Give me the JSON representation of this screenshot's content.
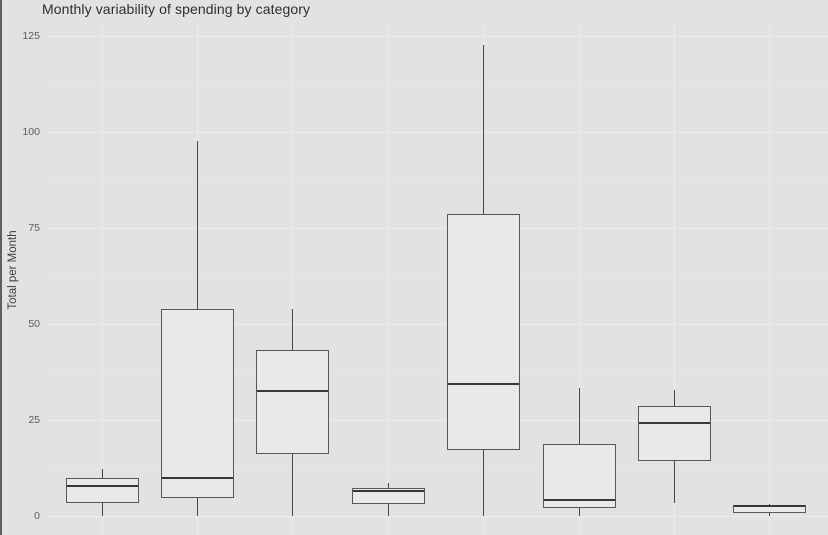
{
  "chart": {
    "title": "Monthly variability of spending by category",
    "ylabel": "Total per Month"
  },
  "chart_data": {
    "type": "boxplot",
    "title": "Monthly variability of spending by category",
    "xlabel": "",
    "ylabel": "Total per Month",
    "yticks": [
      0,
      25,
      50,
      75,
      100,
      125
    ],
    "ylim": [
      -5,
      128
    ],
    "grid": "on",
    "legend": "none",
    "x_axis": {
      "n_categories": 8,
      "tick_labels_visible": false
    },
    "categories": [
      "",
      "",
      "",
      "",
      "",
      "",
      "",
      ""
    ],
    "boxes": [
      {
        "min": 0,
        "q1": 3.5,
        "median": 7.8,
        "q3": 10.0,
        "max": 12.3
      },
      {
        "min": 0,
        "q1": 4.7,
        "median": 10.0,
        "q3": 54.0,
        "max": 97.7
      },
      {
        "min": 0,
        "q1": 16.2,
        "median": 32.6,
        "q3": 43.2,
        "max": 53.9
      },
      {
        "min": 0,
        "q1": 3.2,
        "median": 6.6,
        "q3": 7.4,
        "max": 8.7
      },
      {
        "min": 0,
        "q1": 17.2,
        "median": 34.5,
        "q3": 78.7,
        "max": 122.8
      },
      {
        "min": 0,
        "q1": 2.1,
        "median": 4.2,
        "q3": 18.8,
        "max": 33.4
      },
      {
        "min": 3.5,
        "q1": 14.4,
        "median": 24.3,
        "q3": 28.7,
        "max": 32.9
      },
      {
        "min": 0,
        "q1": 0.8,
        "median": 2.7,
        "q3": 3.0,
        "max": 3.1
      }
    ],
    "colors": {
      "background": "#e2e2e2",
      "gridline_major": "#ededed",
      "gridline_minor": "#e8e8e8",
      "box_border": "#585858",
      "box_fill": "#e9e9e9",
      "median_line": "#383838",
      "title_text": "#2e2e2e",
      "axis_text": "#5a5a5a"
    }
  }
}
